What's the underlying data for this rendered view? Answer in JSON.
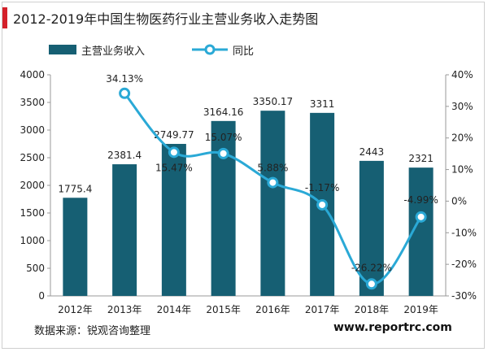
{
  "title": "2012-2019年中国生物医药行业主营业务收入走势图",
  "source": "数据来源：锐观咨询整理",
  "website": "www.reportrc.com",
  "colors": {
    "bar": "#165f73",
    "line": "#2aa9d6",
    "accent": "#d4202a"
  },
  "chart_data": {
    "type": "bar",
    "categories": [
      "2012年",
      "2013年",
      "2014年",
      "2015年",
      "2016年",
      "2017年",
      "2018年",
      "2019年"
    ],
    "series": [
      {
        "name": "主营业务收入",
        "type": "bar",
        "axis": "left",
        "values": [
          1775.4,
          2381.4,
          2749.77,
          3164.16,
          3350.17,
          3311,
          2443,
          2321
        ],
        "labels": [
          "1775.4",
          "2381.4",
          "2749.77",
          "3164.16",
          "3350.17",
          "3311",
          "2443",
          "2321"
        ]
      },
      {
        "name": "同比",
        "type": "line",
        "axis": "right",
        "values": [
          null,
          34.13,
          15.47,
          15.07,
          5.88,
          -1.17,
          -26.22,
          -4.99
        ],
        "labels": [
          "",
          "34.13%",
          "15.47%",
          "15.07%",
          "5.88%",
          "-1.17%",
          "-26.22%",
          "-4.99%"
        ]
      }
    ],
    "y_left": {
      "ylim": [
        0,
        4000
      ],
      "ticks": [
        0,
        500,
        1000,
        1500,
        2000,
        2500,
        3000,
        3500,
        4000
      ]
    },
    "y_right": {
      "ylim": [
        -30,
        40
      ],
      "ticks": [
        "-30%",
        "-20%",
        "-10%",
        "0%",
        "10%",
        "20%",
        "30%",
        "40%"
      ]
    },
    "legend": "top-left",
    "grid": false
  }
}
